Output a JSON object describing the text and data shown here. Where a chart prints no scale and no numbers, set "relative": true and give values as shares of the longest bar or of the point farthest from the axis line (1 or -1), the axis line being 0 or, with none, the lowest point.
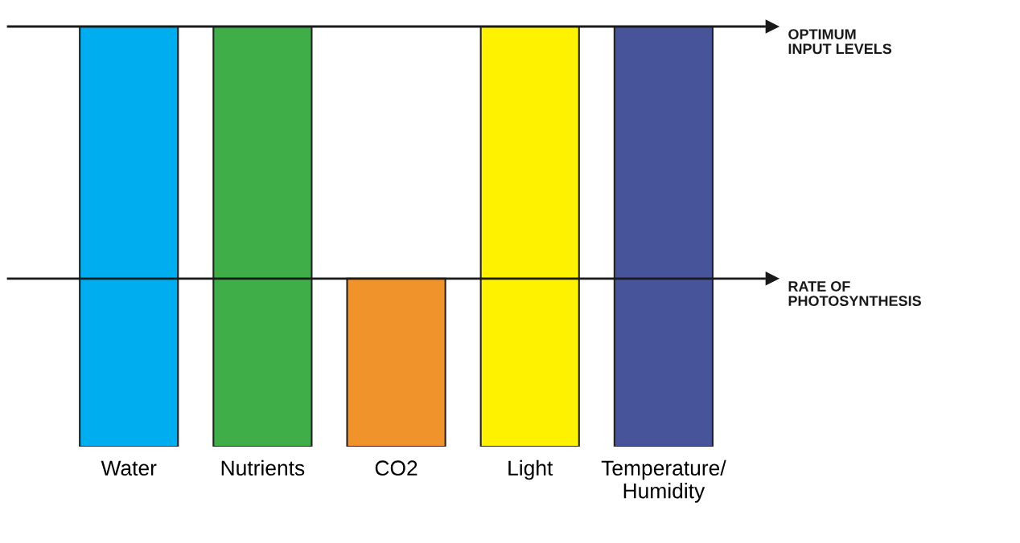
{
  "chart_data": {
    "type": "bar",
    "relative": true,
    "categories": [
      "Water",
      "Nutrients",
      "CO2",
      "Light",
      "Temperature/\nHumidity"
    ],
    "values": [
      1,
      1,
      0.4,
      1,
      1
    ],
    "colors": [
      "#00aeef",
      "#3fae49",
      "#f0932b",
      "#fff200",
      "#47549a"
    ],
    "ref_lines": [
      {
        "axis": "y",
        "value": 1,
        "label": "OPTIMUM\nINPUT LEVELS",
        "color": "#1a1a1a"
      },
      {
        "axis": "y",
        "value": 0.4,
        "label": "RATE OF\nPHOTOSYNTHESIS",
        "color": "#1a1a1a"
      }
    ],
    "grid": false,
    "legend": false
  }
}
